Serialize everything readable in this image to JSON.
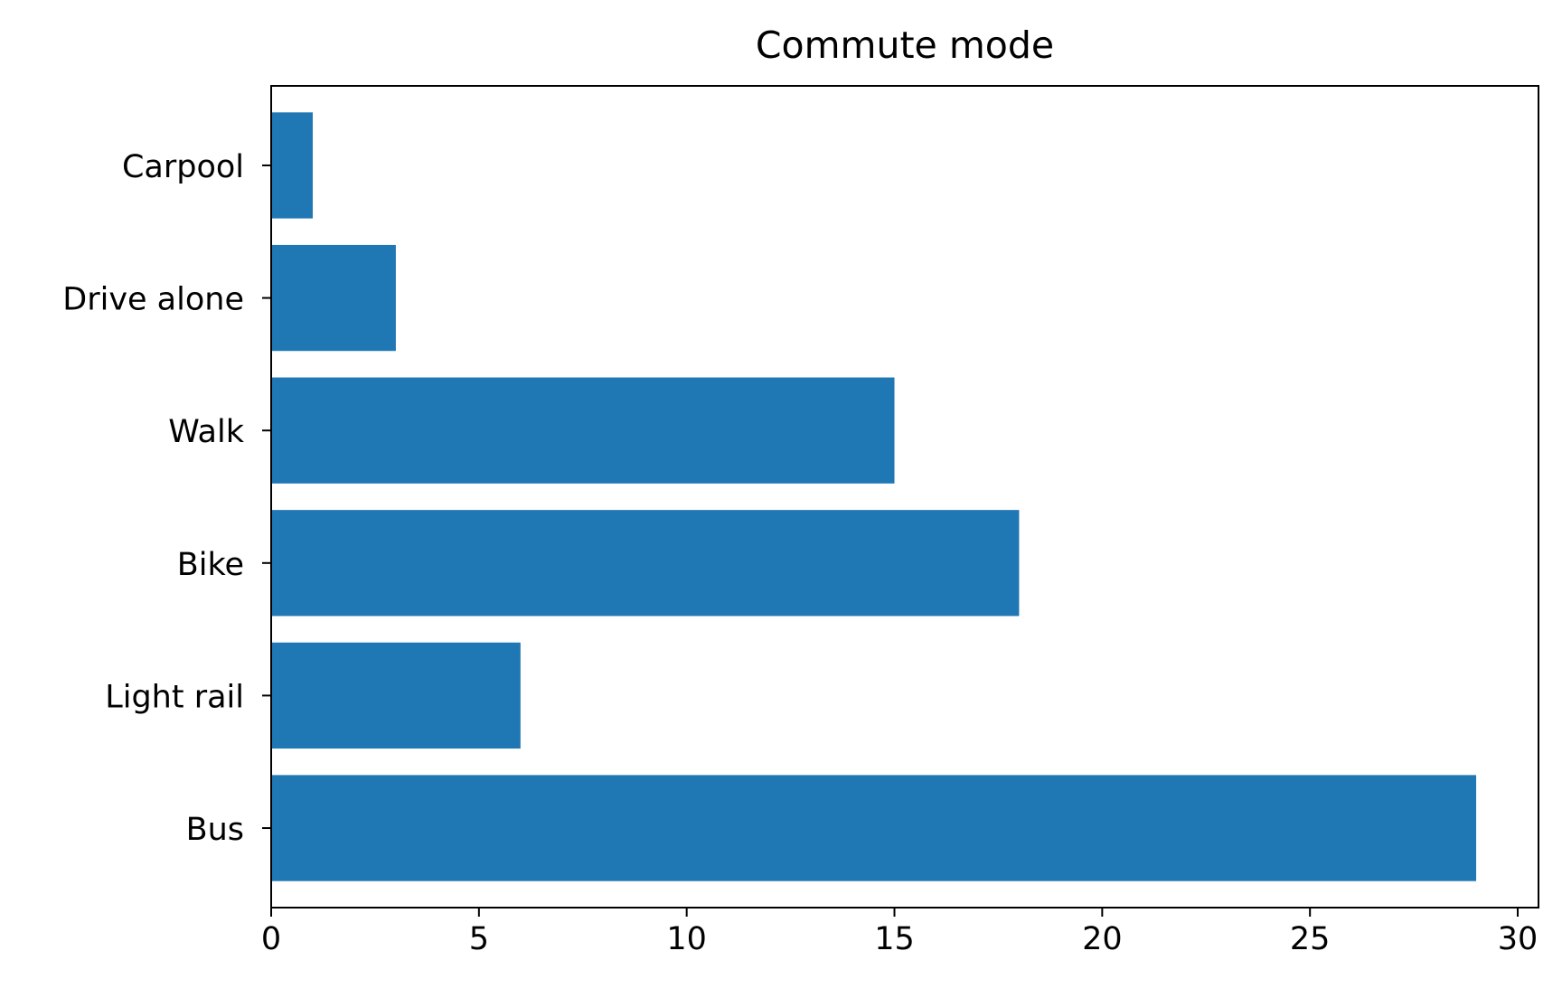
{
  "chart_data": {
    "type": "bar",
    "orientation": "horizontal",
    "title": "Commute mode",
    "xlabel": "",
    "ylabel": "",
    "categories": [
      "Bus",
      "Light rail",
      "Bike",
      "Walk",
      "Drive alone",
      "Carpool"
    ],
    "values": [
      29,
      6,
      18,
      15,
      3,
      1
    ],
    "xlim": [
      0,
      30.5
    ],
    "xticks": [
      0,
      5,
      10,
      15,
      20,
      25,
      30
    ],
    "grid": false,
    "legend": "none",
    "bar_color": "#1f77b4"
  }
}
